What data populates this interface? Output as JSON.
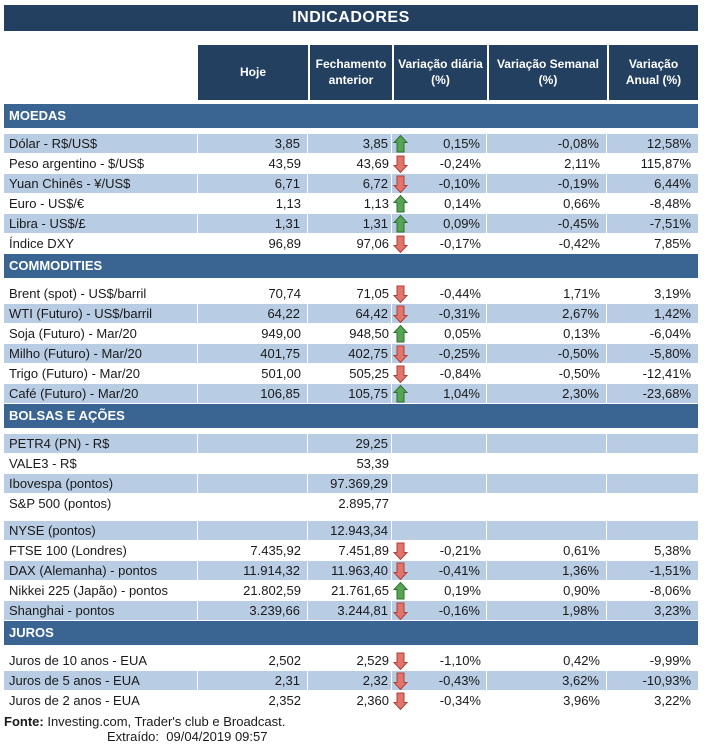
{
  "title": "INDICADORES",
  "columns": [
    {
      "lines": [
        "Hoje",
        ""
      ]
    },
    {
      "lines": [
        "Fechamento",
        "anterior"
      ]
    },
    {
      "lines": [
        "Variação diária",
        "(%)"
      ]
    },
    {
      "lines": [
        "Variação Semanal",
        "(%)"
      ]
    },
    {
      "lines": [
        "Variação",
        "Anual (%)"
      ]
    }
  ],
  "sections": [
    {
      "name": "MOEDAS",
      "rows": [
        {
          "label": "Dólar - R$/US$",
          "hoje": "3,85",
          "fechamento": "3,85",
          "arrow": "up",
          "diaria": "0,15%",
          "semanal": "-0,08%",
          "anual": "12,58%",
          "shaded": true
        },
        {
          "label": "Peso argentino - $/US$",
          "hoje": "43,59",
          "fechamento": "43,69",
          "arrow": "down",
          "diaria": "-0,24%",
          "semanal": "2,11%",
          "anual": "115,87%",
          "shaded": false
        },
        {
          "label": "Yuan Chinês - ¥/US$",
          "hoje": "6,71",
          "fechamento": "6,72",
          "arrow": "down",
          "diaria": "-0,10%",
          "semanal": "-0,19%",
          "anual": "6,44%",
          "shaded": true
        },
        {
          "label": "Euro - US$/€",
          "hoje": "1,13",
          "fechamento": "1,13",
          "arrow": "up",
          "diaria": "0,14%",
          "semanal": "0,66%",
          "anual": "-8,48%",
          "shaded": false
        },
        {
          "label": "Libra - US$/£",
          "hoje": "1,31",
          "fechamento": "1,31",
          "arrow": "up",
          "diaria": "0,09%",
          "semanal": "-0,45%",
          "anual": "-7,51%",
          "shaded": true
        },
        {
          "label": "Índice DXY",
          "hoje": "96,89",
          "fechamento": "97,06",
          "arrow": "down",
          "diaria": "-0,17%",
          "semanal": "-0,42%",
          "anual": "7,85%",
          "shaded": false
        }
      ]
    },
    {
      "name": "COMMODITIES",
      "rows": [
        {
          "label": "Brent (spot) - US$/barril",
          "hoje": "70,74",
          "fechamento": "71,05",
          "arrow": "down",
          "diaria": "-0,44%",
          "semanal": "1,71%",
          "anual": "3,19%",
          "shaded": false
        },
        {
          "label": "WTI (Futuro) - US$/barril",
          "hoje": "64,22",
          "fechamento": "64,42",
          "arrow": "down",
          "diaria": "-0,31%",
          "semanal": "2,67%",
          "anual": "1,42%",
          "shaded": true
        },
        {
          "label": "Soja (Futuro) - Mar/20",
          "hoje": "949,00",
          "fechamento": "948,50",
          "arrow": "up",
          "diaria": "0,05%",
          "semanal": "0,13%",
          "anual": "-6,04%",
          "shaded": false
        },
        {
          "label": "Milho (Futuro) - Mar/20",
          "hoje": "401,75",
          "fechamento": "402,75",
          "arrow": "down",
          "diaria": "-0,25%",
          "semanal": "-0,50%",
          "anual": "-5,80%",
          "shaded": true
        },
        {
          "label": "Trigo (Futuro) - Mar/20",
          "hoje": "501,00",
          "fechamento": "505,25",
          "arrow": "down",
          "diaria": "-0,84%",
          "semanal": "-0,50%",
          "anual": "-12,41%",
          "shaded": false
        },
        {
          "label": "Café (Futuro) - Mar/20",
          "hoje": "106,85",
          "fechamento": "105,75",
          "arrow": "up",
          "diaria": "1,04%",
          "semanal": "2,30%",
          "anual": "-23,68%",
          "shaded": true
        }
      ]
    },
    {
      "name": "BOLSAS E AÇÕES",
      "rows": [
        {
          "label": "PETR4 (PN) - R$",
          "hoje": "",
          "fechamento": "29,25",
          "arrow": "",
          "diaria": "",
          "semanal": "",
          "anual": "",
          "shaded": true
        },
        {
          "label": "VALE3 - R$",
          "hoje": "",
          "fechamento": "53,39",
          "arrow": "",
          "diaria": "",
          "semanal": "",
          "anual": "",
          "shaded": false
        },
        {
          "label": "Ibovespa (pontos)",
          "hoje": "",
          "fechamento": "97.369,29",
          "arrow": "",
          "diaria": "",
          "semanal": "",
          "anual": "",
          "shaded": true
        },
        {
          "label": "S&P 500 (pontos)",
          "hoje": "",
          "fechamento": "2.895,77",
          "arrow": "",
          "diaria": "",
          "semanal": "",
          "anual": "",
          "shaded": false
        },
        {
          "label": "NYSE (pontos)",
          "hoje": "",
          "fechamento": "12.943,34",
          "arrow": "",
          "diaria": "",
          "semanal": "",
          "anual": "",
          "shaded": true,
          "spacer_before": true
        },
        {
          "label": "FTSE 100 (Londres)",
          "hoje": "7.435,92",
          "fechamento": "7.451,89",
          "arrow": "down",
          "diaria": "-0,21%",
          "semanal": "0,61%",
          "anual": "5,38%",
          "shaded": false
        },
        {
          "label": "DAX (Alemanha) - pontos",
          "hoje": "11.914,32",
          "fechamento": "11.963,40",
          "arrow": "down",
          "diaria": "-0,41%",
          "semanal": "1,36%",
          "anual": "-1,51%",
          "shaded": true
        },
        {
          "label": "Nikkei 225 (Japão) - pontos",
          "hoje": "21.802,59",
          "fechamento": "21.761,65",
          "arrow": "up",
          "diaria": "0,19%",
          "semanal": "0,90%",
          "anual": "-8,06%",
          "shaded": false
        },
        {
          "label": "Shanghai - pontos",
          "hoje": "3.239,66",
          "fechamento": "3.244,81",
          "arrow": "down",
          "diaria": "-0,16%",
          "semanal": "1,98%",
          "anual": "3,23%",
          "shaded": true
        }
      ]
    },
    {
      "name": "JUROS",
      "rows": [
        {
          "label": "Juros de 10 anos - EUA",
          "hoje": "2,502",
          "fechamento": "2,529",
          "arrow": "down",
          "diaria": "-1,10%",
          "semanal": "0,42%",
          "anual": "-9,99%",
          "shaded": false
        },
        {
          "label": "Juros de 5 anos - EUA",
          "hoje": "2,31",
          "fechamento": "2,32",
          "arrow": "down",
          "diaria": "-0,43%",
          "semanal": "3,62%",
          "anual": "-10,93%",
          "shaded": true
        },
        {
          "label": "Juros de 2 anos - EUA",
          "hoje": "2,352",
          "fechamento": "2,360",
          "arrow": "down",
          "diaria": "-0,34%",
          "semanal": "3,96%",
          "anual": "3,22%",
          "shaded": false
        }
      ]
    }
  ],
  "footer": {
    "fonte_label": "Fonte:",
    "fonte_text": " Investing.com, Trader's club e Broadcast.",
    "extraido_label": "Extraído:",
    "extraido_value": "09/04/2019 09:57"
  },
  "icons": {
    "up_arrow": "arrow-up-icon",
    "down_arrow": "arrow-down-icon"
  },
  "colors": {
    "navy": "#234060",
    "section_blue": "#3A6492",
    "row_shade": "#B8CCE4",
    "arrow_up_fill": "#55A555",
    "arrow_up_border": "#2F6F2F",
    "arrow_down_fill": "#E0756B",
    "arrow_down_border": "#AF3F3A"
  }
}
